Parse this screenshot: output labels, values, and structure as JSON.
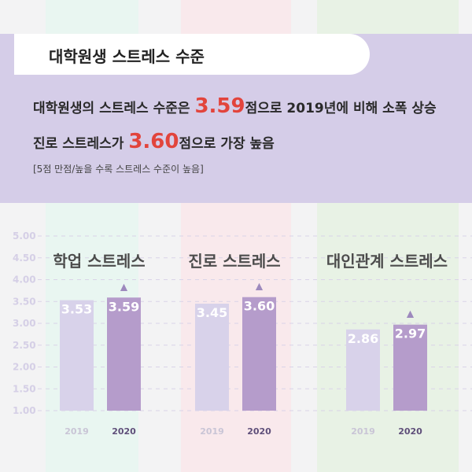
{
  "header": {
    "tab_title": "대학원생 스트레스 수준",
    "line1": {
      "pre": "대학원생의 스트레스 수준은 ",
      "num": "3.59",
      "post": "점으로 2019년에 비해 소폭 상승"
    },
    "line2": {
      "pre": "진로 스트레스가 ",
      "num": "3.60",
      "post": "점으로 가장 높음"
    },
    "note": "[5점 만점/높을 수록 스트레스 수준이 높음]"
  },
  "colors": {
    "header_bg": "#d5cde8",
    "bar_2019": "#d8d2ea",
    "bar_2020": "#b59ccb",
    "band_green": "#e9f6f1",
    "band_pink": "#f9e9ec",
    "band_lightgreen": "#e8f2e5",
    "highlight": "#e2443c"
  },
  "chart_data": {
    "type": "bar",
    "ylim": [
      1.0,
      5.0
    ],
    "yticks": [
      "1.00",
      "1.50",
      "2.00",
      "2.50",
      "3.00",
      "3.50",
      "4.00",
      "4.50",
      "5.00"
    ],
    "grid": true,
    "categories": [
      "학업 스트레스",
      "진로 스트레스",
      "대인관계 스트레스"
    ],
    "series": [
      {
        "name": "2019",
        "values": [
          3.53,
          3.45,
          2.86
        ],
        "labels": [
          "3.53",
          "3.45",
          "2.86"
        ]
      },
      {
        "name": "2020",
        "values": [
          3.59,
          3.6,
          2.97
        ],
        "labels": [
          "3.59",
          "3.60",
          "2.97"
        ]
      }
    ],
    "annotations": [
      "▲",
      "▲",
      "▲"
    ]
  }
}
